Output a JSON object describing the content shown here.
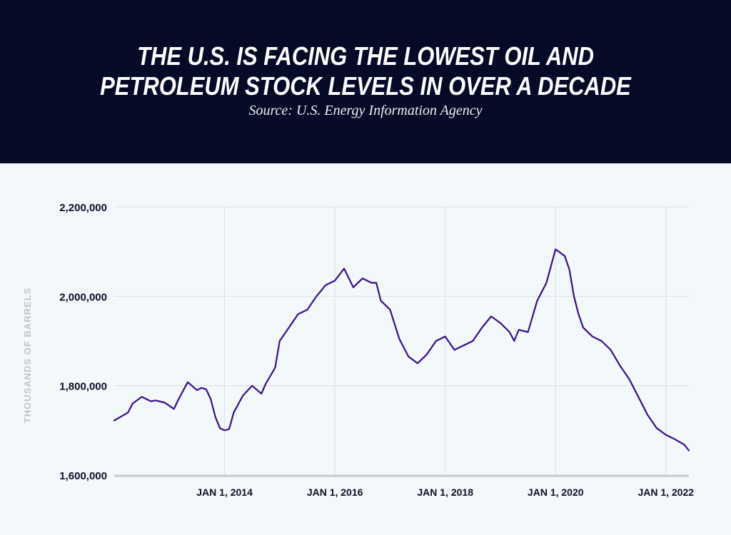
{
  "header": {
    "title_line1": "THE U.S. IS FACING THE LOWEST OIL AND",
    "title_line2": "PETROLEUM STOCK LEVELS IN OVER A DECADE",
    "subtitle": "Source: U.S. Energy Information Agency"
  },
  "colors": {
    "header_bg": "#050a26",
    "chart_bg": "#f3f8fb",
    "line": "#3a0d8f",
    "grid": "#dcdee3",
    "baseline": "#c8c8c8",
    "axis_label": "#c2c2c2",
    "tick_label": "#0d0f26"
  },
  "chart_data": {
    "type": "line",
    "title": "THE U.S. IS FACING THE LOWEST OIL AND PETROLEUM STOCK LEVELS IN OVER A DECADE",
    "subtitle": "Source: U.S. Energy Information Agency",
    "xlabel": "",
    "ylabel": "THOUSANDS OF BARRELS",
    "xlim": [
      "2012-01",
      "2022-06"
    ],
    "ylim": [
      1600000,
      2200000
    ],
    "yticks": [
      1600000,
      1800000,
      2000000,
      2200000
    ],
    "ytick_labels": [
      "1,600,000",
      "1,800,000",
      "2,000,000",
      "2,200,000"
    ],
    "xticks": [
      "2014-01",
      "2016-01",
      "2018-01",
      "2020-01",
      "2022-01"
    ],
    "xtick_labels": [
      "JAN 1, 2014",
      "JAN 1, 2016",
      "JAN 1, 2018",
      "JAN 1, 2020",
      "JAN 1, 2022"
    ],
    "grid": true,
    "legend": "none",
    "series": [
      {
        "x": [
          "2012-01",
          "2012-02",
          "2012-04",
          "2012-05",
          "2012-07",
          "2012-09",
          "2012-10",
          "2012-12",
          "2013-02",
          "2013-03",
          "2013-05",
          "2013-07",
          "2013-08",
          "2013-09",
          "2013-10",
          "2013-11",
          "2013-12",
          "2014-01",
          "2014-02",
          "2014-03",
          "2014-05",
          "2014-07",
          "2014-09",
          "2014-10",
          "2014-12",
          "2015-01",
          "2015-03",
          "2015-05",
          "2015-07",
          "2015-09",
          "2015-11",
          "2016-01",
          "2016-03",
          "2016-05",
          "2016-07",
          "2016-09",
          "2016-10",
          "2016-11",
          "2017-01",
          "2017-03",
          "2017-05",
          "2017-07",
          "2017-09",
          "2017-11",
          "2018-01",
          "2018-03",
          "2018-05",
          "2018-07",
          "2018-09",
          "2018-11",
          "2019-01",
          "2019-03",
          "2019-04",
          "2019-05",
          "2019-07",
          "2019-09",
          "2019-11",
          "2020-01",
          "2020-03",
          "2020-04",
          "2020-05",
          "2020-06",
          "2020-07",
          "2020-09",
          "2020-11",
          "2021-01",
          "2021-03",
          "2021-05",
          "2021-07",
          "2021-09",
          "2021-11",
          "2022-01",
          "2022-03",
          "2022-05",
          "2022-06"
        ],
        "y": [
          1722000,
          1728000,
          1740000,
          1760000,
          1775000,
          1765000,
          1767000,
          1762000,
          1748000,
          1770000,
          1808000,
          1790000,
          1795000,
          1792000,
          1770000,
          1730000,
          1705000,
          1700000,
          1703000,
          1740000,
          1778000,
          1800000,
          1782000,
          1805000,
          1840000,
          1900000,
          1930000,
          1960000,
          1970000,
          2000000,
          2025000,
          2035000,
          2062000,
          2020000,
          2040000,
          2030000,
          2030000,
          1990000,
          1970000,
          1905000,
          1865000,
          1850000,
          1870000,
          1900000,
          1910000,
          1880000,
          1890000,
          1900000,
          1930000,
          1955000,
          1940000,
          1920000,
          1900000,
          1925000,
          1920000,
          1990000,
          2030000,
          2105000,
          2090000,
          2060000,
          2000000,
          1960000,
          1930000,
          1910000,
          1900000,
          1880000,
          1845000,
          1815000,
          1775000,
          1735000,
          1705000,
          1690000,
          1680000,
          1668000,
          1655000
        ]
      }
    ]
  }
}
